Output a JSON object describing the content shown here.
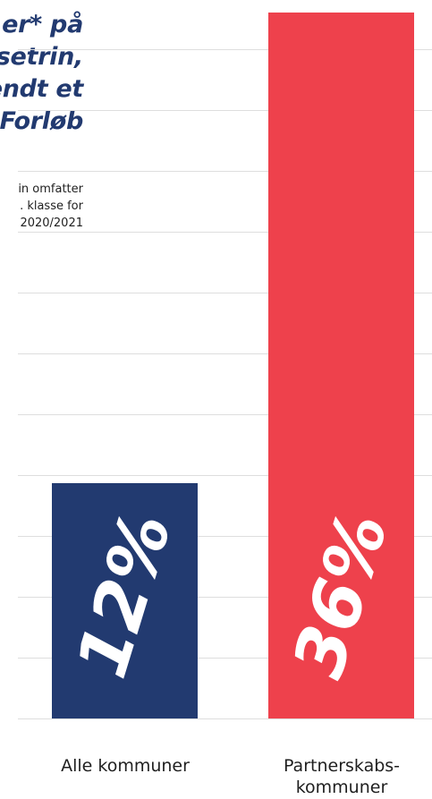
{
  "title_lines": [
    "er* på",
    "setrin,",
    "endt et",
    "Forløb"
  ],
  "note_lines": [
    "in omfatter",
    ". klasse for",
    "2020/2021"
  ],
  "chart_data": {
    "type": "bar",
    "categories": [
      [
        "Alle kommuner"
      ],
      [
        "Partnerskabs-",
        "kommuner"
      ]
    ],
    "values": [
      12,
      36
    ],
    "value_labels": [
      "12%",
      "36%"
    ],
    "colors": [
      "#223a70",
      "#ee414c"
    ],
    "ylim": [
      0,
      36
    ],
    "grid": true
  }
}
